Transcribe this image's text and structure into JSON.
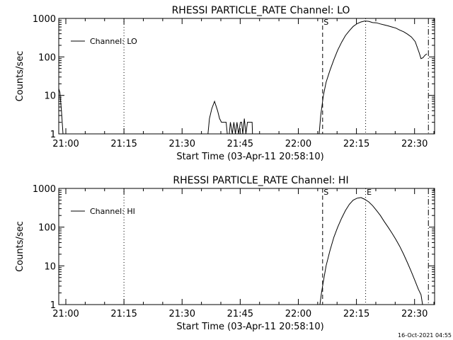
{
  "footer": {
    "timestamp": "16-Oct-2021 04:55"
  },
  "chart_data": [
    {
      "type": "line",
      "title": "RHESSI PARTICLE_RATE Channel: LO",
      "xlabel": "Start Time (03-Apr-11 20:58:10)",
      "ylabel": "Counts/sec",
      "yscale": "log",
      "xlim_minutes_after_start": [
        0,
        97
      ],
      "ylim": [
        1,
        1000
      ],
      "x_tick_labels": [
        "21:00",
        "21:15",
        "21:30",
        "21:45",
        "22:00",
        "22:15",
        "22:30"
      ],
      "x_tick_minutes": [
        1.83,
        16.83,
        31.83,
        46.83,
        61.83,
        76.83,
        91.83
      ],
      "y_tick_labels": [
        "1",
        "10",
        "100",
        "1000"
      ],
      "y_tick_values": [
        1,
        10,
        100,
        1000
      ],
      "legend": {
        "label": "Channel: LO",
        "placement": "top-left"
      },
      "markers": [
        {
          "label": "S",
          "minutes": 68.1,
          "style": "dashed"
        },
        {
          "label": "",
          "minutes": 79.2,
          "style": "dotted"
        },
        {
          "label": "",
          "minutes": 95.4,
          "style": "dashdot"
        },
        {
          "label": "",
          "minutes": 16.83,
          "style": "dotted"
        }
      ],
      "series": [
        {
          "name": "Channel: LO",
          "points": [
            [
              0.0,
              15
            ],
            [
              0.3,
              12
            ],
            [
              0.7,
              4
            ],
            [
              1.1,
              1
            ],
            [
              38.5,
              1
            ],
            [
              38.9,
              2.5
            ],
            [
              39.5,
              4.5
            ],
            [
              40.2,
              7
            ],
            [
              41.0,
              4
            ],
            [
              41.5,
              2.5
            ],
            [
              42.0,
              2
            ],
            [
              42.5,
              2
            ],
            [
              43.2,
              2
            ],
            [
              43.5,
              1
            ],
            [
              44.0,
              1
            ],
            [
              44.3,
              2
            ],
            [
              44.8,
              1
            ],
            [
              45.2,
              2
            ],
            [
              45.6,
              1
            ],
            [
              46.0,
              2
            ],
            [
              46.4,
              1
            ],
            [
              46.9,
              2
            ],
            [
              47.2,
              2
            ],
            [
              47.5,
              1
            ],
            [
              47.9,
              2.5
            ],
            [
              48.3,
              1
            ],
            [
              48.7,
              2
            ],
            [
              49.9,
              2
            ],
            [
              50.0,
              1
            ],
            [
              67.2,
              1
            ],
            [
              67.6,
              3
            ],
            [
              68.3,
              10
            ],
            [
              69.0,
              22
            ],
            [
              70.0,
              45
            ],
            [
              71.0,
              85
            ],
            [
              72.0,
              150
            ],
            [
              73.0,
              240
            ],
            [
              74.0,
              360
            ],
            [
              75.0,
              480
            ],
            [
              76.0,
              620
            ],
            [
              77.0,
              730
            ],
            [
              78.0,
              810
            ],
            [
              79.0,
              860
            ],
            [
              80.0,
              840
            ],
            [
              81.0,
              780
            ],
            [
              82.0,
              770
            ],
            [
              83.0,
              720
            ],
            [
              84.0,
              680
            ],
            [
              85.0,
              640
            ],
            [
              86.0,
              600
            ],
            [
              87.0,
              560
            ],
            [
              88.0,
              500
            ],
            [
              89.0,
              450
            ],
            [
              90.0,
              390
            ],
            [
              91.0,
              330
            ],
            [
              92.0,
              250
            ],
            [
              93.0,
              130
            ],
            [
              93.5,
              90
            ],
            [
              94.0,
              95
            ],
            [
              94.5,
              110
            ],
            [
              95.0,
              120
            ]
          ]
        }
      ]
    },
    {
      "type": "line",
      "title": "RHESSI PARTICLE_RATE Channel: HI",
      "xlabel": "Start Time (03-Apr-11 20:58:10)",
      "ylabel": "Counts/sec",
      "yscale": "log",
      "xlim_minutes_after_start": [
        0,
        97
      ],
      "ylim": [
        1,
        1000
      ],
      "x_tick_labels": [
        "21:00",
        "21:15",
        "21:30",
        "21:45",
        "22:00",
        "22:15",
        "22:30"
      ],
      "x_tick_minutes": [
        1.83,
        16.83,
        31.83,
        46.83,
        61.83,
        76.83,
        91.83
      ],
      "y_tick_labels": [
        "1",
        "10",
        "100",
        "1000"
      ],
      "y_tick_values": [
        1,
        10,
        100,
        1000
      ],
      "legend": {
        "label": "Channel: HI",
        "placement": "top-left"
      },
      "markers": [
        {
          "label": "S",
          "minutes": 68.1,
          "style": "dashed"
        },
        {
          "label": "E",
          "minutes": 79.2,
          "style": "dotted"
        },
        {
          "label": "",
          "minutes": 95.4,
          "style": "dashdot"
        },
        {
          "label": "",
          "minutes": 16.83,
          "style": "dotted"
        }
      ],
      "series": [
        {
          "name": "Channel: HI",
          "points": [
            [
              67.4,
              1
            ],
            [
              67.8,
              2
            ],
            [
              68.3,
              4
            ],
            [
              69.0,
              10
            ],
            [
              70.0,
              25
            ],
            [
              71.0,
              55
            ],
            [
              72.0,
              100
            ],
            [
              73.0,
              170
            ],
            [
              74.0,
              270
            ],
            [
              75.0,
              390
            ],
            [
              76.0,
              500
            ],
            [
              77.0,
              560
            ],
            [
              78.0,
              580
            ],
            [
              79.0,
              520
            ],
            [
              80.0,
              450
            ],
            [
              81.0,
              360
            ],
            [
              82.0,
              270
            ],
            [
              83.0,
              200
            ],
            [
              84.0,
              140
            ],
            [
              85.0,
              100
            ],
            [
              86.0,
              70
            ],
            [
              87.0,
              48
            ],
            [
              88.0,
              32
            ],
            [
              89.0,
              20
            ],
            [
              90.0,
              12
            ],
            [
              91.0,
              7
            ],
            [
              92.0,
              4
            ],
            [
              92.8,
              2.5
            ],
            [
              93.5,
              1.8
            ],
            [
              93.9,
              1
            ]
          ]
        }
      ]
    }
  ]
}
